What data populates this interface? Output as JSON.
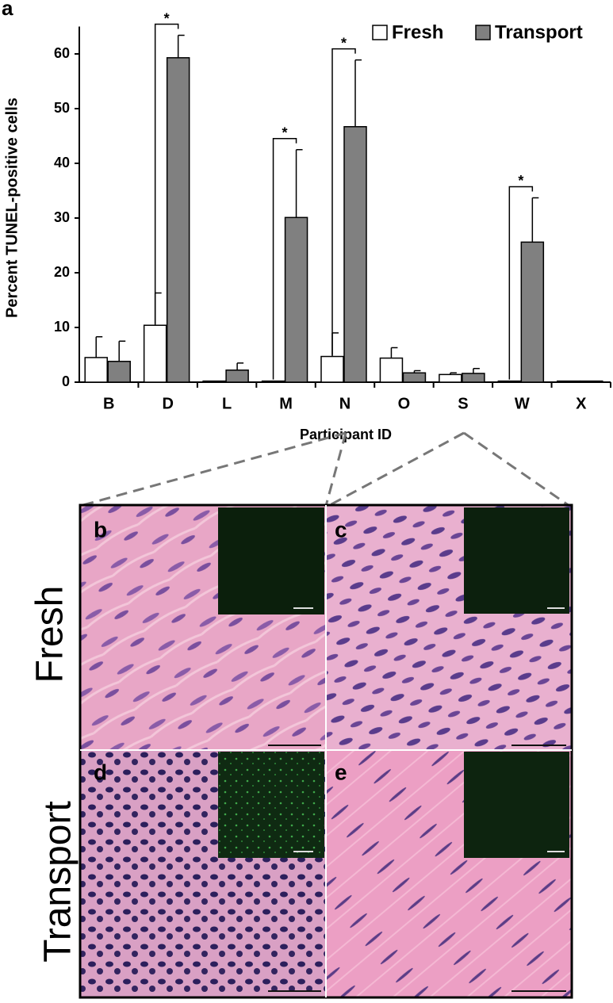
{
  "chart_data": {
    "type": "bar",
    "panel_label": "a",
    "y_label": "Percent TUNEL-positive cells",
    "x_label": "Participant ID",
    "categories": [
      "B",
      "D",
      "L",
      "M",
      "N",
      "O",
      "S",
      "W",
      "X"
    ],
    "series": [
      {
        "name": "Fresh",
        "color": "#ffffff",
        "values": [
          4.5,
          10.4,
          0.2,
          0.2,
          4.7,
          4.4,
          1.4,
          0.2,
          0.2
        ],
        "errors": [
          3.8,
          5.9,
          0,
          0,
          4.3,
          1.9,
          0.3,
          0,
          0
        ]
      },
      {
        "name": "Transport",
        "color": "#808080",
        "values": [
          3.8,
          59.3,
          2.2,
          30.1,
          46.7,
          1.7,
          1.6,
          25.6,
          0.2
        ],
        "errors": [
          3.7,
          4.1,
          1.3,
          12.4,
          12.2,
          0.4,
          0.9,
          8.1,
          0
        ]
      }
    ],
    "significance": [
      null,
      "*",
      null,
      "*",
      "*",
      null,
      null,
      "*",
      null
    ],
    "ylim": [
      0,
      65
    ],
    "yticks": [
      0,
      10,
      20,
      30,
      40,
      50,
      60
    ],
    "legend": "top-right"
  },
  "panels": {
    "rows": [
      "Fresh",
      "Transport"
    ],
    "labels": [
      "b",
      "c",
      "d",
      "e"
    ]
  }
}
